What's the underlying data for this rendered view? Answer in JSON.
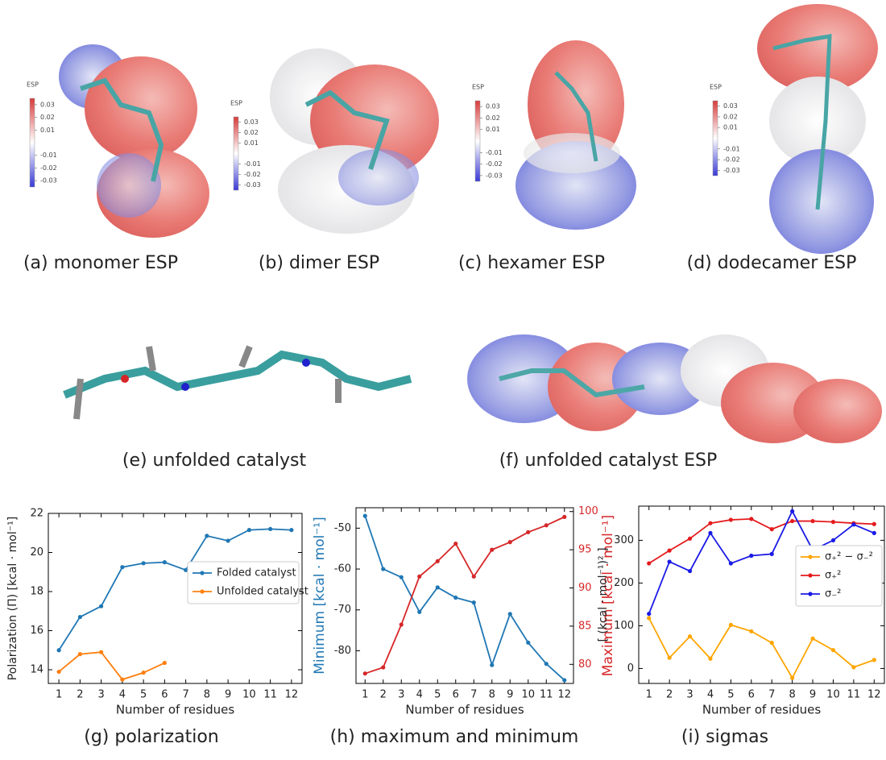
{
  "figures": {
    "colorbar": {
      "label": "ESP",
      "lim": [
        -0.035,
        0.035
      ],
      "ticks": [
        0.03,
        0.02,
        0.01,
        -0.01,
        -0.02,
        -0.03
      ]
    },
    "panels": [
      {
        "caption": "(a) monomer ESP"
      },
      {
        "caption": "(b) dimer ESP"
      },
      {
        "caption": "(c) hexamer ESP"
      },
      {
        "caption": "(d) dodecamer ESP"
      },
      {
        "caption": "(e) unfolded catalyst"
      },
      {
        "caption": "(f) unfolded catalyst ESP"
      },
      {
        "caption": "(g) polarization"
      },
      {
        "caption": "(h) maximum and minimum"
      },
      {
        "caption": "(i) sigmas"
      }
    ]
  },
  "chart_data": [
    {
      "type": "line",
      "xlabel": "Number of residues",
      "ylabel": "Polarization (Π) [kcal · mol⁻¹]",
      "x": [
        1,
        2,
        3,
        4,
        5,
        6,
        7,
        8,
        9,
        10,
        11,
        12
      ],
      "xlim": [
        0.5,
        12.5
      ],
      "xticks": [
        1,
        2,
        3,
        4,
        5,
        6,
        7,
        8,
        9,
        10,
        11,
        12
      ],
      "ylim": [
        13.3,
        22
      ],
      "yticks": [
        14,
        16,
        18,
        20,
        22
      ],
      "legend": "center right",
      "series": [
        {
          "name": "Folded catalyst",
          "color": "#1f77b4",
          "values": [
            15.0,
            16.7,
            17.25,
            19.25,
            19.45,
            19.5,
            19.1,
            20.85,
            20.6,
            21.15,
            21.2,
            21.15
          ]
        },
        {
          "name": "Unfolded catalyst",
          "color": "#ff7f0e",
          "values": [
            13.9,
            14.8,
            14.9,
            13.5,
            13.85,
            14.35,
            null,
            null,
            null,
            null,
            null,
            null
          ]
        }
      ]
    },
    {
      "type": "line",
      "xlabel": "Number of residues",
      "ylabel": "Minimum [kcal · mol⁻¹]",
      "y2label": "Maximum [kcal · mol⁻¹]",
      "x": [
        1,
        2,
        3,
        4,
        5,
        6,
        7,
        8,
        9,
        10,
        11,
        12
      ],
      "xlim": [
        0.5,
        12.5
      ],
      "xticks": [
        1,
        2,
        3,
        4,
        5,
        6,
        7,
        8,
        9,
        10,
        11,
        12
      ],
      "ylim": [
        -88,
        -45
      ],
      "yticks": [
        -80,
        -70,
        -60,
        -50
      ],
      "y2lim": [
        77.5,
        100.5
      ],
      "y2ticks": [
        80,
        85,
        90,
        95,
        100
      ],
      "series": [
        {
          "color": "#1f77b4",
          "values": [
            -47,
            -60,
            -62,
            -70.5,
            -64.5,
            -67,
            -68.2,
            -83.5,
            -71,
            -78,
            -83.2,
            -87.2
          ]
        },
        {
          "color": "#d62728",
          "axis": "y2",
          "values": [
            78.8,
            79.6,
            85.2,
            91.5,
            93.5,
            95.8,
            91.5,
            95,
            96,
            97.3,
            98.2,
            99.3
          ]
        }
      ]
    },
    {
      "type": "line",
      "xlabel": "Number of residues",
      "ylabel": "[ (kcal · mol⁻¹)² ]",
      "x": [
        1,
        2,
        3,
        4,
        5,
        6,
        7,
        8,
        9,
        10,
        11,
        12
      ],
      "xlim": [
        0.5,
        12.5
      ],
      "xticks": [
        1,
        2,
        3,
        4,
        5,
        6,
        7,
        8,
        9,
        10,
        11,
        12
      ],
      "ylim": [
        -35,
        380
      ],
      "yticks": [
        0,
        100,
        200,
        300
      ],
      "legend": "center right",
      "series": [
        {
          "name": "σ₊² − σ₋²",
          "color": "#ffa500",
          "values": [
            118,
            25,
            75,
            23,
            102,
            87,
            60,
            -22,
            70,
            43,
            3,
            20
          ]
        },
        {
          "name": "σ₊²",
          "color": "#e41a1c",
          "values": [
            246,
            276,
            304,
            340,
            348,
            350,
            326,
            345,
            345,
            343,
            340,
            338
          ]
        },
        {
          "name": "σ₋²",
          "color": "#1a1ae6",
          "values": [
            128,
            250,
            228,
            317,
            246,
            264,
            268,
            368,
            277,
            300,
            337,
            317
          ]
        }
      ]
    }
  ]
}
